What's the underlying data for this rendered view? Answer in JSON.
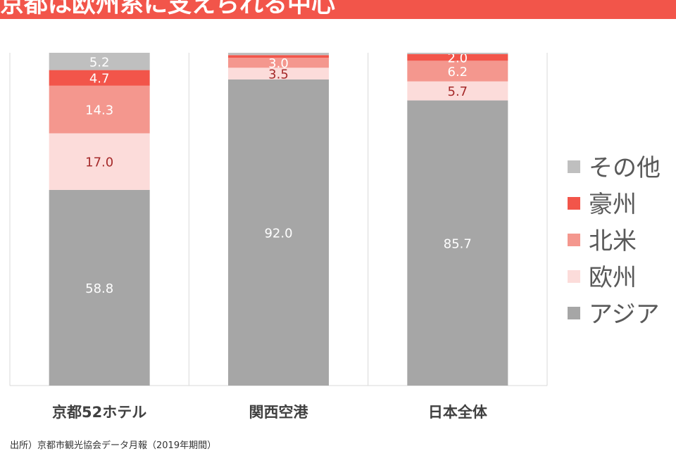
{
  "title": "京都は欧州系に支えられる中心",
  "footnote": "出所）京都市観光協会データ月報（2019年期間）",
  "chart_data": {
    "type": "bar",
    "stacked": true,
    "categories": [
      "京都52ホテル",
      "関西空港",
      "日本全体"
    ],
    "ylim": [
      0,
      100
    ],
    "grid": false,
    "legend_position": "right",
    "series": [
      {
        "name": "アジア",
        "color": "#a6a6a6",
        "label_color": "#ffffff",
        "values": [
          58.8,
          92.0,
          85.7
        ]
      },
      {
        "name": "欧州",
        "color": "#fcdcda",
        "label_color": "#a52a2a",
        "values": [
          17.0,
          3.5,
          5.7
        ]
      },
      {
        "name": "北米",
        "color": "#f4978e",
        "label_color": "#ffffff",
        "values": [
          14.3,
          3.0,
          6.2
        ]
      },
      {
        "name": "豪州",
        "color": "#f2554a",
        "label_color": "#ffffff",
        "values": [
          4.7,
          0.8,
          2.0
        ]
      },
      {
        "name": "その他",
        "color": "#bfbfbf",
        "label_color": "#ffffff",
        "values": [
          5.2,
          0.7,
          0.4
        ]
      }
    ],
    "data_labels": [
      [
        "58.8",
        "92.0",
        "85.7"
      ],
      [
        "17.0",
        "3.5",
        "5.7"
      ],
      [
        "14.3",
        "3.0",
        "6.2"
      ],
      [
        "4.7",
        "",
        "2.0"
      ],
      [
        "5.2",
        "",
        ""
      ]
    ],
    "legend_order": [
      "その他",
      "豪州",
      "北米",
      "欧州",
      "アジア"
    ]
  }
}
